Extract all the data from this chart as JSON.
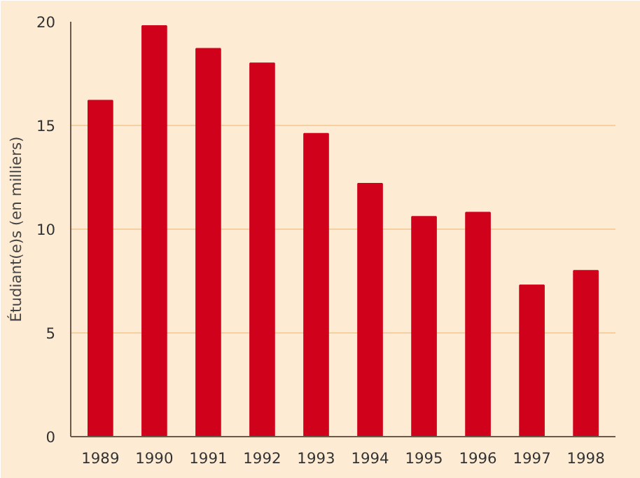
{
  "chart_data": {
    "type": "bar",
    "ylabel": "Étudiant(e)s (en milliers)",
    "categories": [
      "1989",
      "1990",
      "1991",
      "1992",
      "1993",
      "1994",
      "1995",
      "1996",
      "1997",
      "1998"
    ],
    "values": [
      16.2,
      19.8,
      18.7,
      18.0,
      14.6,
      12.2,
      10.6,
      10.8,
      7.3,
      8.0
    ],
    "color": "#d0021b",
    "ylim": [
      0,
      20
    ],
    "yticks": [
      0,
      5,
      10,
      15,
      20
    ],
    "grid": "y"
  }
}
